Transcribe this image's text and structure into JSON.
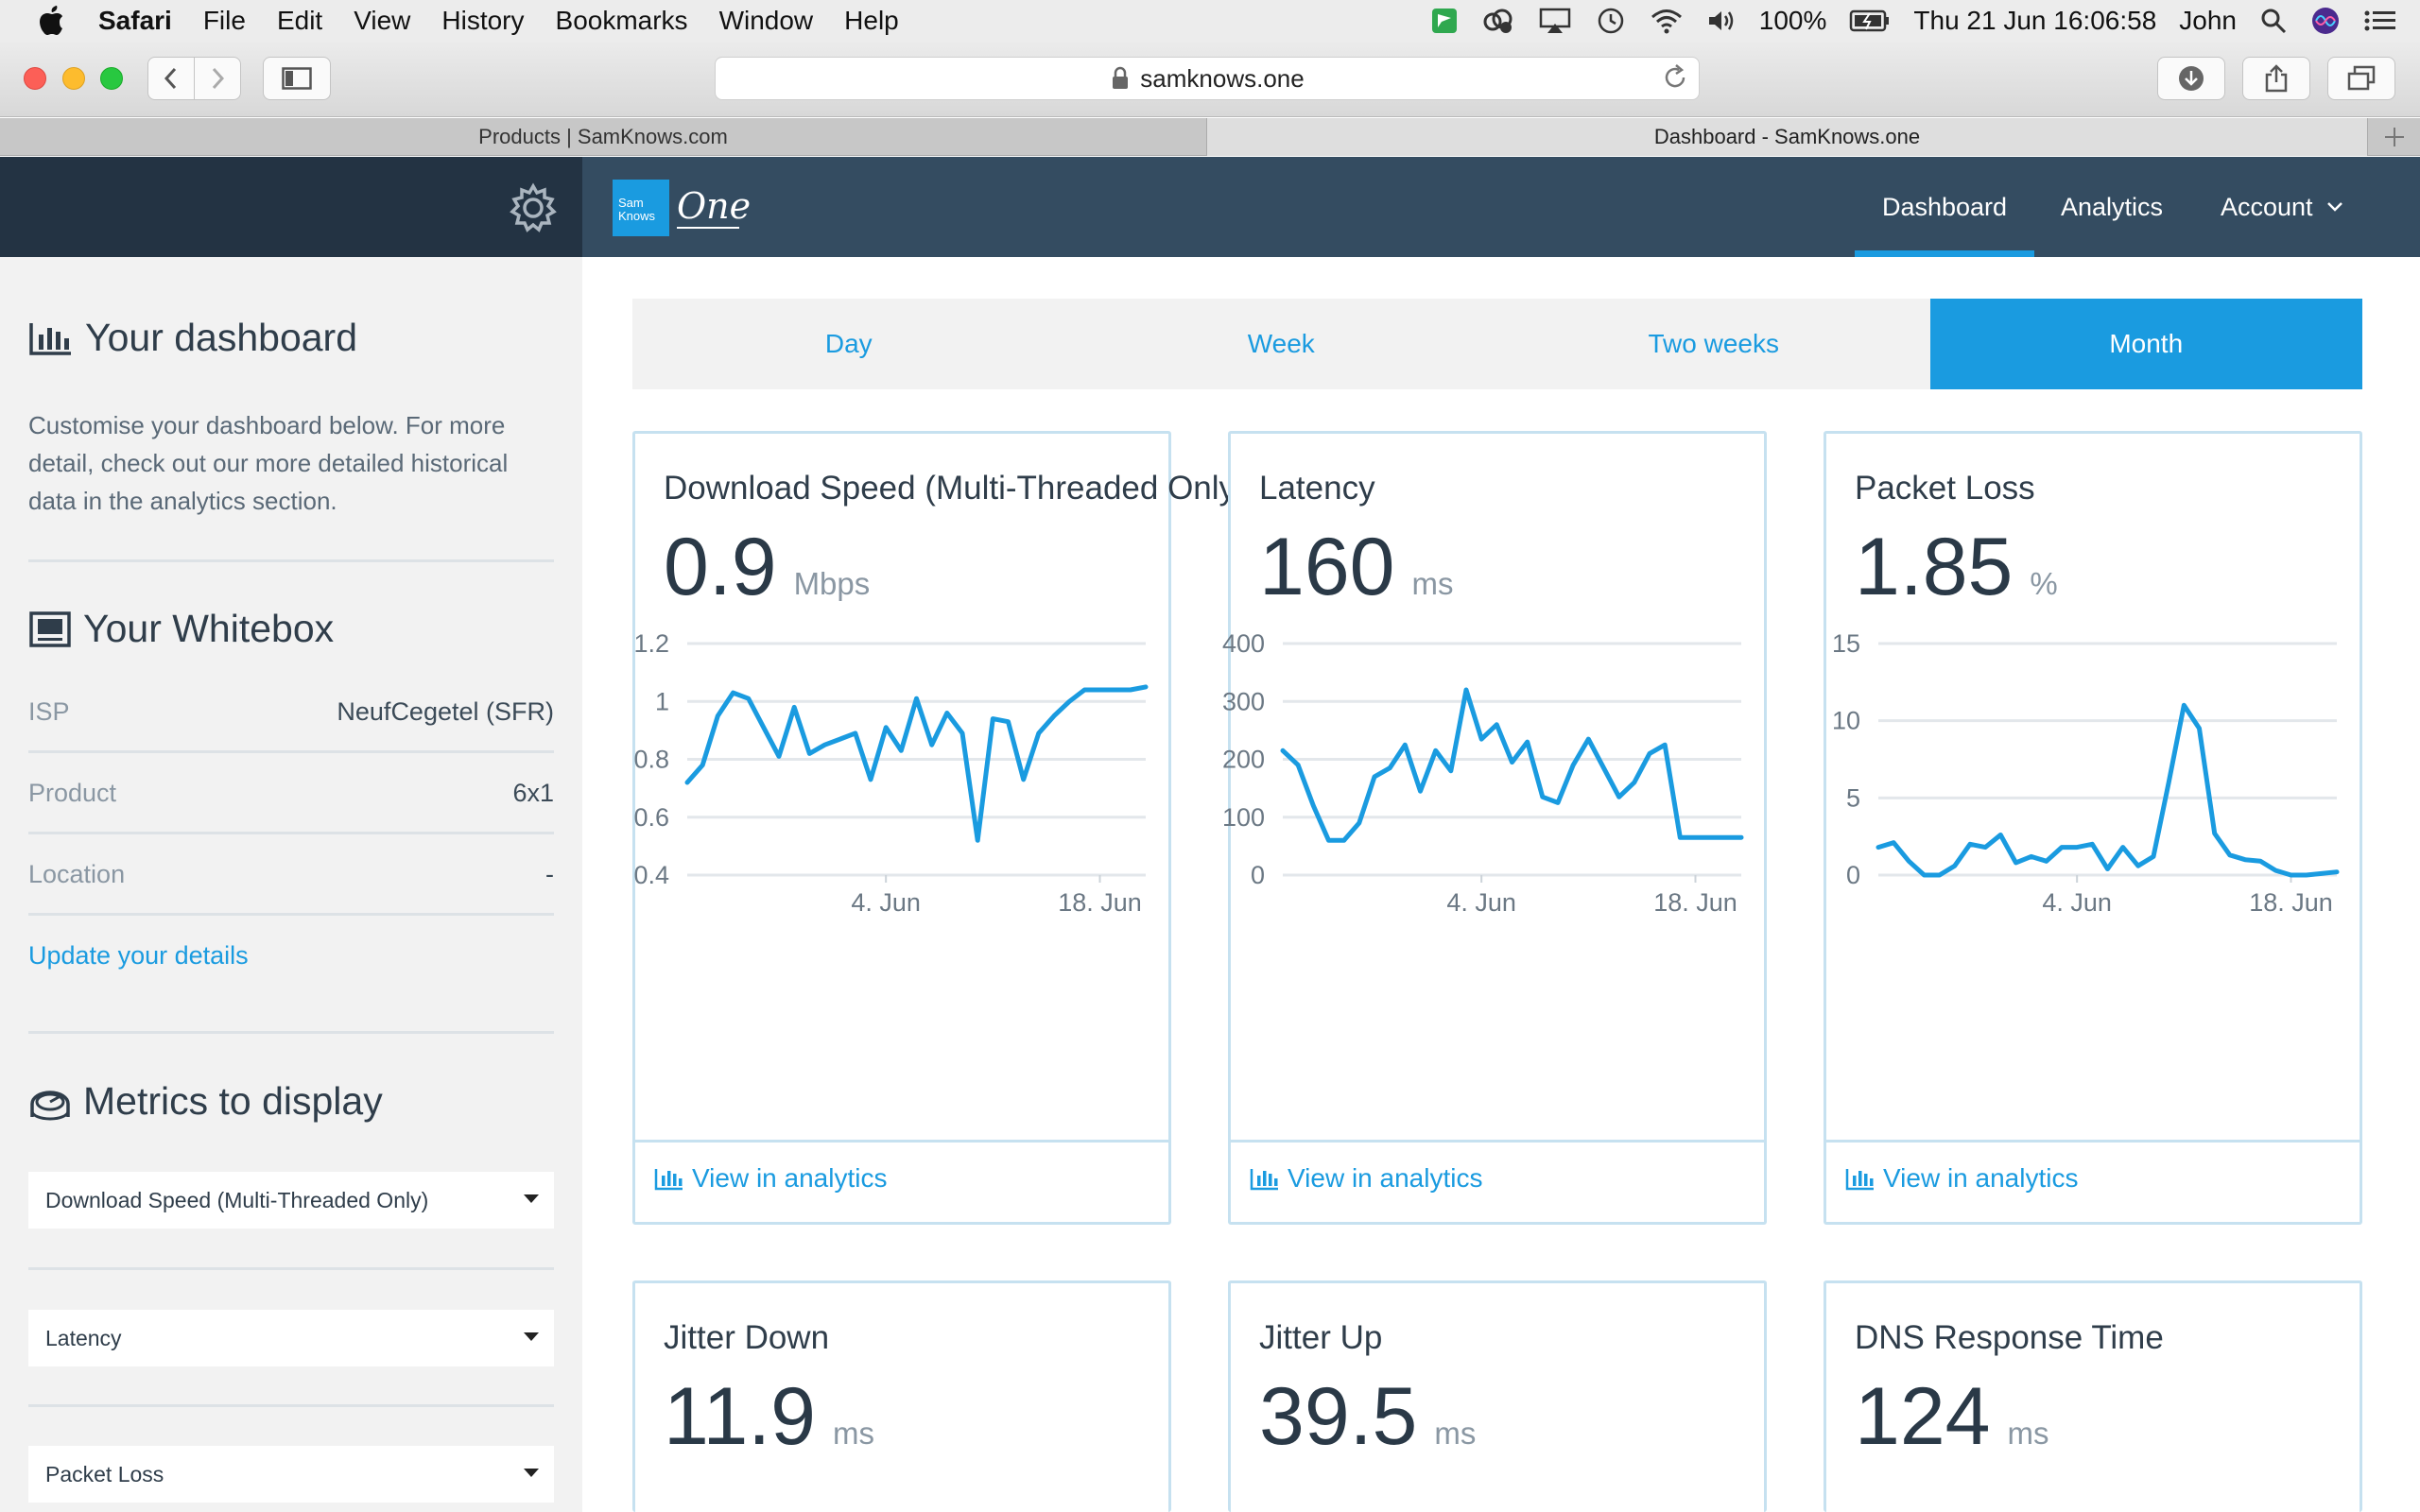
{
  "menubar": {
    "app": "Safari",
    "items": [
      "File",
      "Edit",
      "View",
      "History",
      "Bookmarks",
      "Window",
      "Help"
    ],
    "battery": "100%",
    "datetime": "Thu 21 Jun  16:06:58",
    "user": "John"
  },
  "browser": {
    "url": "samknows.one",
    "tabs": [
      {
        "title": "Products | SamKnows.com",
        "active": false
      },
      {
        "title": "Dashboard - SamKnows.one",
        "active": true
      }
    ]
  },
  "header": {
    "logo_text": "Sam Knows",
    "logo_one": "One",
    "nav": [
      {
        "label": "Dashboard",
        "active": true
      },
      {
        "label": "Analytics",
        "active": false
      },
      {
        "label": "Account",
        "active": false
      }
    ]
  },
  "sidebar": {
    "dashboard": {
      "title": "Your dashboard",
      "description": "Customise your dashboard below. For more detail, check out our more detailed historical data in the analytics section."
    },
    "whitebox": {
      "title": "Your Whitebox",
      "rows": [
        {
          "key": "ISP",
          "value": "NeufCegetel (SFR)"
        },
        {
          "key": "Product",
          "value": "6x1"
        },
        {
          "key": "Location",
          "value": "-"
        }
      ],
      "update_link": "Update your details"
    },
    "metrics": {
      "title": "Metrics to display",
      "selects": [
        "Download Speed (Multi-Threaded Only)",
        "Latency",
        "Packet Loss"
      ]
    }
  },
  "ranges": [
    {
      "label": "Day",
      "active": false
    },
    {
      "label": "Week",
      "active": false
    },
    {
      "label": "Two weeks",
      "active": false
    },
    {
      "label": "Month",
      "active": true
    }
  ],
  "colors": {
    "accent": "#1a9be0",
    "header": "#344c61",
    "sidebar_header": "#233343"
  },
  "cards": [
    {
      "title": "Download Speed (Multi-Threaded Only)",
      "value": "0.9",
      "unit": "Mbps",
      "cta": "View in analytics",
      "chart_data": {
        "type": "line",
        "y_ticks": [
          "1.2",
          "1",
          "0.8",
          "0.6",
          "0.4"
        ],
        "ylim": [
          0.4,
          1.2
        ],
        "x_ticks": [
          "4. Jun",
          "18. Jun"
        ],
        "x_tick_index": [
          13,
          27
        ],
        "values": [
          0.72,
          0.78,
          0.95,
          1.03,
          1.01,
          0.91,
          0.81,
          0.98,
          0.82,
          0.85,
          0.87,
          0.89,
          0.73,
          0.91,
          0.83,
          1.01,
          0.85,
          0.96,
          0.89,
          0.52,
          0.94,
          0.93,
          0.73,
          0.89,
          0.95,
          1.0,
          1.04,
          1.04,
          1.04,
          1.04,
          1.05
        ]
      }
    },
    {
      "title": "Latency",
      "value": "160",
      "unit": "ms",
      "cta": "View in analytics",
      "chart_data": {
        "type": "line",
        "y_ticks": [
          "400",
          "300",
          "200",
          "100",
          "0"
        ],
        "ylim": [
          0,
          400
        ],
        "x_ticks": [
          "4. Jun",
          "18. Jun"
        ],
        "x_tick_index": [
          13,
          27
        ],
        "values": [
          215,
          190,
          120,
          60,
          60,
          90,
          170,
          185,
          225,
          145,
          215,
          180,
          320,
          235,
          260,
          195,
          230,
          135,
          125,
          190,
          235,
          185,
          135,
          160,
          210,
          225,
          65,
          65,
          65,
          65,
          65
        ]
      }
    },
    {
      "title": "Packet Loss",
      "value": "1.85",
      "unit": "%",
      "cta": "View in analytics",
      "chart_data": {
        "type": "line",
        "y_ticks": [
          "15",
          "10",
          "5",
          "0"
        ],
        "ylim": [
          0,
          15
        ],
        "x_ticks": [
          "4. Jun",
          "18. Jun"
        ],
        "x_tick_index": [
          13,
          27
        ],
        "values": [
          1.8,
          2.1,
          0.9,
          0.0,
          0.0,
          0.6,
          2.0,
          1.8,
          2.6,
          0.8,
          1.2,
          0.9,
          1.8,
          1.8,
          2.0,
          0.4,
          1.8,
          0.6,
          1.2,
          6.0,
          11.0,
          9.5,
          2.7,
          1.3,
          1.0,
          0.9,
          0.3,
          0.0,
          0.0,
          0.1,
          0.2
        ]
      }
    },
    {
      "title": "Jitter Down",
      "value": "11.9",
      "unit": "ms"
    },
    {
      "title": "Jitter Up",
      "value": "39.5",
      "unit": "ms"
    },
    {
      "title": "DNS Response Time",
      "value": "124",
      "unit": "ms"
    }
  ]
}
